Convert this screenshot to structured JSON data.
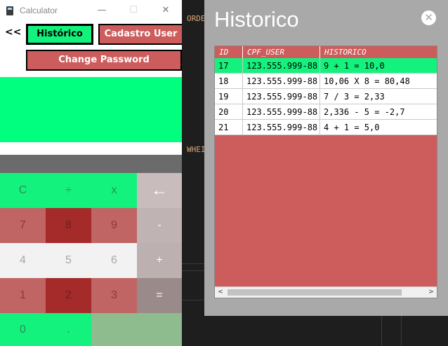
{
  "calculator": {
    "window_title": "Calculator",
    "controls": {
      "minimize": "—",
      "maximize": "☐",
      "close": "✕"
    },
    "back_label": "<<",
    "nav": {
      "historico": "Histórico",
      "cadastro": "Cadastro User",
      "change_password": "Change Password"
    },
    "display_value": "",
    "keys": [
      [
        "C",
        "÷",
        "x",
        "←"
      ],
      [
        "7",
        "8",
        "9",
        "-"
      ],
      [
        "4",
        "5",
        "6",
        "+"
      ],
      [
        "1",
        "2",
        "3",
        "="
      ],
      [
        "0",
        ".",
        ""
      ]
    ]
  },
  "editor": {
    "fragments": [
      "ORDE",
      "WHEI"
    ]
  },
  "historico": {
    "title": "Historico",
    "close_icon": "✕",
    "columns": [
      "ID",
      "CPF_USER",
      "HISTORICO"
    ],
    "rows": [
      {
        "id": "17",
        "cpf": "123.555.999-88",
        "historico": "9 + 1 = 10,0"
      },
      {
        "id": "18",
        "cpf": "123.555.999-88",
        "historico": "10,06 X 8 = 80,48"
      },
      {
        "id": "19",
        "cpf": "123.555.999-88",
        "historico": "7 / 3 = 2,33"
      },
      {
        "id": "20",
        "cpf": "123.555.999-88",
        "historico": "2,336 - 5 = -2,7"
      },
      {
        "id": "21",
        "cpf": "123.555.999-88",
        "historico": "4 + 1 = 5,0"
      }
    ],
    "selected_row": "17",
    "scroll_left": "<",
    "scroll_right": ">"
  },
  "colors": {
    "green": "#14f27e",
    "display_green": "#00ff7f",
    "red": "#cd5c5c",
    "dark_red": "#a52a2a",
    "dialog_gray": "#a9a9a9"
  }
}
